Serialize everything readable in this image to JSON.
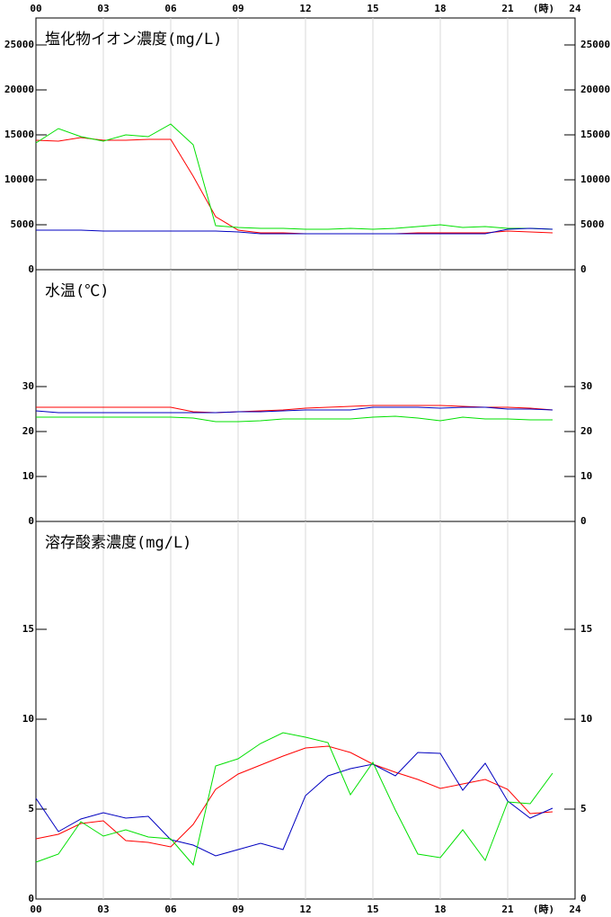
{
  "x_axis": {
    "xlim": [
      0,
      24
    ],
    "unit_label": "(時)",
    "xticks": [
      {
        "value": 0,
        "label": "00"
      },
      {
        "value": 3,
        "label": "03"
      },
      {
        "value": 6,
        "label": "06"
      },
      {
        "value": 9,
        "label": "09"
      },
      {
        "value": 12,
        "label": "12"
      },
      {
        "value": 15,
        "label": "15"
      },
      {
        "value": 18,
        "label": "18"
      },
      {
        "value": 21,
        "label": "21"
      },
      24
    ],
    "x": [
      0,
      1,
      2,
      3,
      4,
      5,
      6,
      7,
      8,
      9,
      10,
      11,
      12,
      13,
      14,
      15,
      16,
      17,
      18,
      19,
      20,
      21,
      22,
      23
    ]
  },
  "chart_data": [
    {
      "type": "line",
      "title": "塩化物イオン濃度(mg/L)",
      "ylim": [
        0,
        28000
      ],
      "yticks": [
        0,
        5000,
        10000,
        15000,
        20000,
        25000
      ],
      "series": [
        {
          "color": "#ff0000",
          "values": [
            14400,
            14300,
            14700,
            14400,
            14400,
            14500,
            14500,
            10400,
            5900,
            4400,
            4100,
            4100,
            4000,
            4000,
            4000,
            4000,
            4000,
            4100,
            4100,
            4100,
            4100,
            4300,
            4200,
            4100
          ]
        },
        {
          "color": "#00e000",
          "values": [
            14100,
            15700,
            14800,
            14300,
            15000,
            14800,
            16200,
            13900,
            4900,
            4700,
            4600,
            4600,
            4500,
            4500,
            4600,
            4500,
            4600,
            4800,
            5000,
            4700,
            4800,
            4600,
            4600,
            4500
          ]
        },
        {
          "color": "#0000c0",
          "values": [
            4400,
            4400,
            4400,
            4300,
            4300,
            4300,
            4300,
            4300,
            4300,
            4200,
            4000,
            4000,
            4000,
            4000,
            4000,
            4000,
            4000,
            4000,
            4000,
            4000,
            4000,
            4500,
            4600,
            4500
          ]
        }
      ]
    },
    {
      "type": "line",
      "title": "水温(℃)",
      "ylim": [
        0,
        56
      ],
      "yticks": [
        0,
        10,
        20,
        30
      ],
      "series": [
        {
          "color": "#ff0000",
          "values": [
            25.4,
            25.4,
            25.4,
            25.4,
            25.4,
            25.4,
            25.4,
            24.4,
            24.2,
            24.4,
            24.6,
            24.8,
            25.2,
            25.4,
            25.6,
            25.8,
            25.8,
            25.8,
            25.8,
            25.6,
            25.4,
            25.4,
            25.2,
            24.8
          ]
        },
        {
          "color": "#0000c0",
          "values": [
            24.6,
            24.2,
            24.2,
            24.2,
            24.2,
            24.2,
            24.2,
            24.2,
            24.2,
            24.4,
            24.4,
            24.6,
            24.8,
            24.8,
            24.8,
            25.4,
            25.4,
            25.4,
            25.2,
            25.4,
            25.4,
            25.0,
            25.0,
            24.8
          ]
        },
        {
          "color": "#00e000",
          "values": [
            23.2,
            23.2,
            23.2,
            23.2,
            23.2,
            23.2,
            23.2,
            23.0,
            22.2,
            22.2,
            22.4,
            22.8,
            22.8,
            22.8,
            22.8,
            23.2,
            23.4,
            23.0,
            22.4,
            23.2,
            22.8,
            22.8,
            22.6,
            22.6
          ]
        }
      ]
    },
    {
      "type": "line",
      "title": "溶存酸素濃度(mg/L)",
      "ylim": [
        0,
        21
      ],
      "yticks": [
        0,
        5,
        10,
        15
      ],
      "series": [
        {
          "color": "#ff0000",
          "values": [
            3.35,
            3.6,
            4.2,
            4.35,
            3.25,
            3.15,
            2.9,
            4.15,
            6.1,
            6.95,
            7.45,
            7.95,
            8.4,
            8.5,
            8.15,
            7.5,
            7.05,
            6.65,
            6.15,
            6.4,
            6.65,
            6.1,
            4.75,
            4.85
          ]
        },
        {
          "color": "#0000c0",
          "values": [
            5.6,
            3.75,
            4.45,
            4.8,
            4.5,
            4.6,
            3.3,
            3.0,
            2.4,
            2.75,
            3.1,
            2.75,
            5.75,
            6.85,
            7.25,
            7.5,
            6.85,
            8.15,
            8.1,
            6.05,
            7.55,
            5.45,
            4.5,
            5.05
          ]
        },
        {
          "color": "#00e000",
          "values": [
            2.05,
            2.5,
            4.3,
            3.5,
            3.85,
            3.45,
            3.35,
            1.9,
            7.4,
            7.8,
            8.65,
            9.25,
            9.0,
            8.7,
            5.8,
            7.6,
            4.95,
            2.5,
            2.3,
            3.85,
            2.15,
            5.4,
            5.3,
            7.0
          ]
        }
      ]
    }
  ]
}
